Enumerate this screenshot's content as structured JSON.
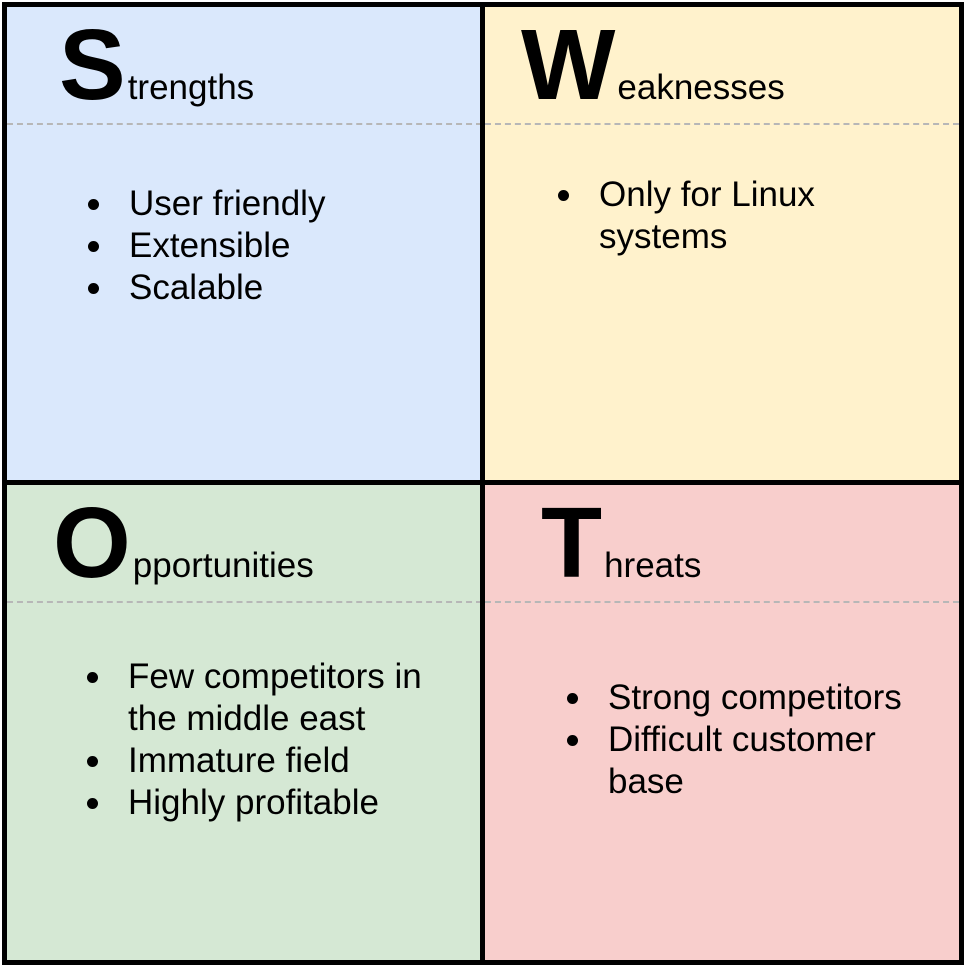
{
  "colors": {
    "strengths_bg": "#dae8fc",
    "weaknesses_bg": "#fff2cc",
    "opportunities_bg": "#d5e8d4",
    "threats_bg": "#f8cecc",
    "border": "#000000",
    "divider": "#b7b7b7"
  },
  "strengths": {
    "initial": "S",
    "rest": "trengths",
    "items": [
      "User friendly",
      "Extensible",
      "Scalable"
    ]
  },
  "weaknesses": {
    "initial": "W",
    "rest": "eaknesses",
    "items": [
      "Only for Linux systems"
    ]
  },
  "opportunities": {
    "initial": "O",
    "rest": "pportunities",
    "items": [
      "Few competitors in the middle east",
      "Immature field",
      "Highly profitable"
    ]
  },
  "threats": {
    "initial": "T",
    "rest": "hreats",
    "items": [
      "Strong competitors",
      "Difficult customer base"
    ]
  }
}
